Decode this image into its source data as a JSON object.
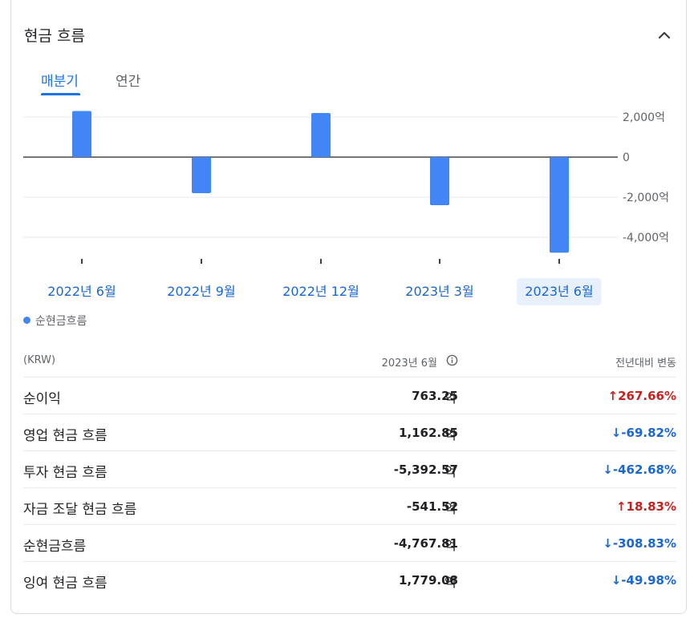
{
  "header": {
    "title": "현금 흐름"
  },
  "tabs": [
    {
      "label": "매분기",
      "selected": true
    },
    {
      "label": "연간",
      "selected": false
    }
  ],
  "colors": {
    "accent": "#1a73e8",
    "bar": "#4285f4",
    "up": "#c5221f",
    "down": "#1967d2"
  },
  "chart_data": {
    "type": "bar",
    "categories": [
      "2022년 6월",
      "2022년 9월",
      "2022년 12월",
      "2023년 3월",
      "2023년 6월"
    ],
    "values": [
      2300,
      -1800,
      2200,
      -2400,
      -4768
    ],
    "selected_index": 4,
    "y_ticks": [
      {
        "value": 2000,
        "label": "2,000억"
      },
      {
        "value": 0,
        "label": "0"
      },
      {
        "value": -2000,
        "label": "-2,000억"
      },
      {
        "value": -4000,
        "label": "-4,000억"
      }
    ],
    "legend": "순현금흐름",
    "grid": true
  },
  "table": {
    "unit_header": "(KRW)",
    "date_header": "2023년 6월",
    "change_header": "전년대비 변동",
    "value_unit": "억",
    "rows": [
      {
        "label": "순이익",
        "value": "763.25",
        "change": "267.66%",
        "dir": "up"
      },
      {
        "label": "영업 현금 흐름",
        "value": "1,162.85",
        "change": "-69.82%",
        "dir": "down"
      },
      {
        "label": "투자 현금 흐름",
        "value": "-5,392.57",
        "change": "-462.68%",
        "dir": "down"
      },
      {
        "label": "자금 조달 현금 흐름",
        "value": "-541.52",
        "change": "18.83%",
        "dir": "up"
      },
      {
        "label": "순현금흐름",
        "value": "-4,767.81",
        "change": "-308.83%",
        "dir": "down"
      },
      {
        "label": "잉여 현금 흐름",
        "value": "1,779.08",
        "change": "-49.98%",
        "dir": "down"
      }
    ]
  }
}
